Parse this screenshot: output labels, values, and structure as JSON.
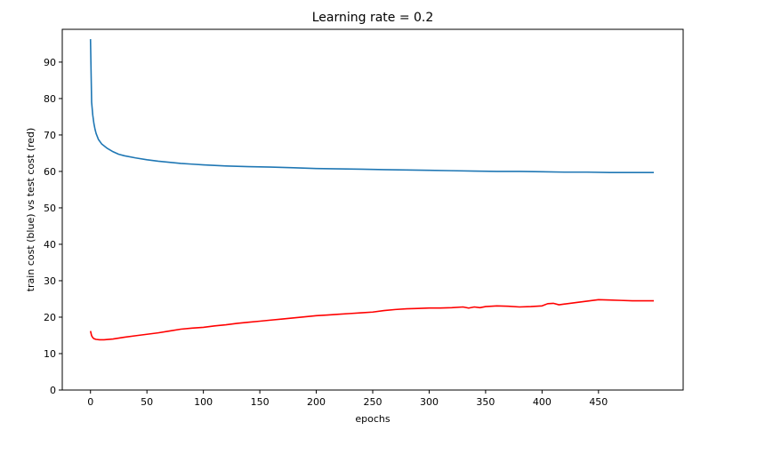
{
  "chart_data": {
    "type": "line",
    "title": "Learning rate = 0.2",
    "xlabel": "epochs",
    "ylabel": "train cost (blue) vs test cost (red)",
    "xlim": [
      -25,
      525
    ],
    "ylim": [
      0,
      99
    ],
    "xticks": [
      0,
      50,
      100,
      150,
      200,
      250,
      300,
      350,
      400,
      450
    ],
    "yticks": [
      0,
      10,
      20,
      30,
      40,
      50,
      60,
      70,
      80,
      90
    ],
    "grid": false,
    "series": [
      {
        "color": "#1f77b4",
        "x": [
          0,
          1,
          2,
          3,
          4,
          5,
          7,
          10,
          15,
          20,
          25,
          30,
          40,
          50,
          60,
          70,
          80,
          90,
          100,
          120,
          140,
          160,
          180,
          200,
          220,
          240,
          260,
          280,
          300,
          320,
          340,
          360,
          380,
          400,
          420,
          440,
          460,
          480,
          499
        ],
        "y": [
          96.3,
          79.0,
          75.5,
          73.2,
          71.6,
          70.4,
          68.8,
          67.5,
          66.3,
          65.4,
          64.7,
          64.3,
          63.7,
          63.2,
          62.8,
          62.5,
          62.2,
          62.0,
          61.8,
          61.5,
          61.3,
          61.2,
          61.0,
          60.8,
          60.7,
          60.6,
          60.5,
          60.4,
          60.3,
          60.2,
          60.1,
          60.0,
          60.0,
          59.9,
          59.8,
          59.8,
          59.7,
          59.7,
          59.7
        ]
      },
      {
        "color": "#ff0000",
        "x": [
          0,
          1,
          2,
          3,
          5,
          8,
          12,
          20,
          30,
          40,
          50,
          60,
          70,
          80,
          90,
          100,
          110,
          120,
          130,
          140,
          150,
          160,
          170,
          180,
          190,
          200,
          210,
          220,
          230,
          240,
          250,
          260,
          270,
          280,
          290,
          300,
          310,
          320,
          330,
          335,
          340,
          345,
          350,
          360,
          370,
          380,
          390,
          400,
          405,
          410,
          415,
          420,
          430,
          440,
          450,
          460,
          470,
          480,
          490,
          499
        ],
        "y": [
          16.2,
          14.9,
          14.4,
          14.1,
          13.9,
          13.8,
          13.8,
          14.0,
          14.5,
          14.9,
          15.3,
          15.7,
          16.2,
          16.7,
          17.0,
          17.2,
          17.6,
          17.9,
          18.3,
          18.6,
          18.9,
          19.2,
          19.5,
          19.8,
          20.1,
          20.4,
          20.6,
          20.8,
          21.0,
          21.2,
          21.4,
          21.8,
          22.1,
          22.3,
          22.4,
          22.5,
          22.5,
          22.6,
          22.8,
          22.5,
          22.8,
          22.6,
          22.9,
          23.1,
          23.0,
          22.8,
          22.9,
          23.1,
          23.7,
          23.8,
          23.4,
          23.6,
          24.0,
          24.4,
          24.8,
          24.7,
          24.6,
          24.5,
          24.5,
          24.5
        ]
      }
    ]
  }
}
